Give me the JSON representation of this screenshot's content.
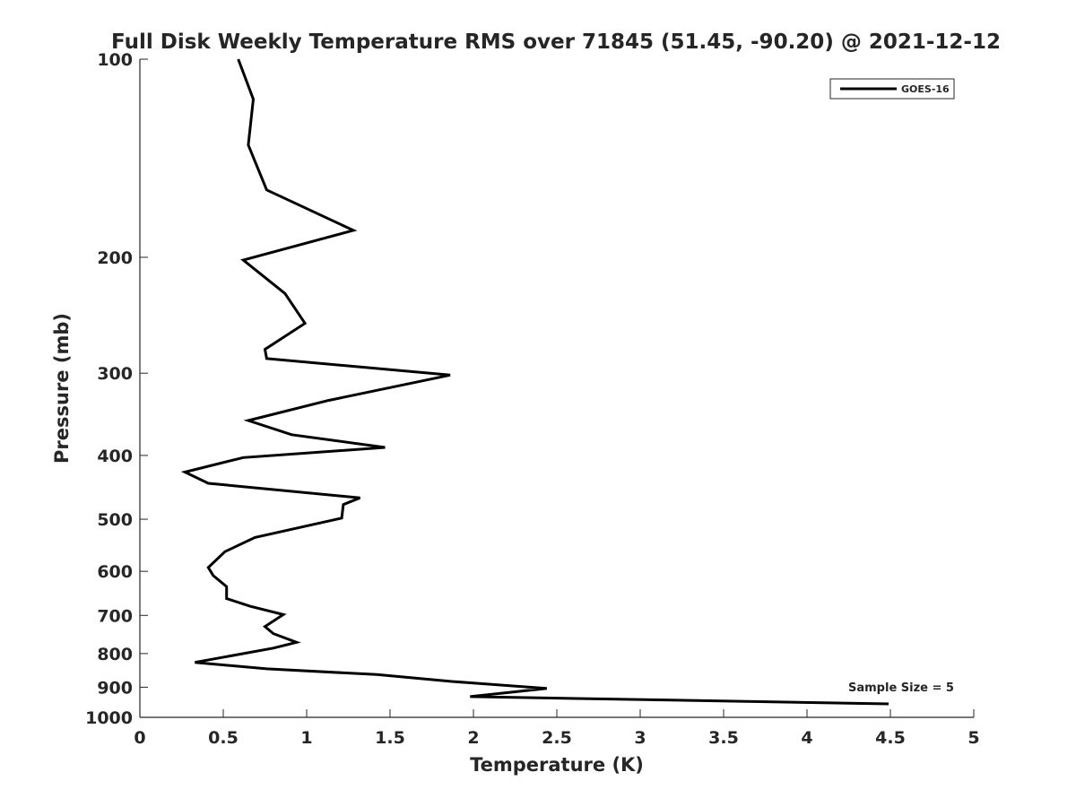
{
  "chart_data": {
    "type": "line",
    "title": "Full Disk Weekly Temperature RMS over 71845 (51.45, -90.20) @ 2021-12-12",
    "xlabel": "Temperature (K)",
    "ylabel": "Pressure (mb)",
    "xlim": [
      0,
      5
    ],
    "ylim": [
      100,
      1000
    ],
    "yscale": "log",
    "yaxis_reversed": true,
    "grid": false,
    "xticks": [
      "0",
      "0.5",
      "1",
      "1.5",
      "2",
      "2.5",
      "3",
      "3.5",
      "4",
      "4.5",
      "5"
    ],
    "yticks": [
      {
        "value": 100,
        "label": "100"
      },
      {
        "value": 200,
        "label": "200"
      },
      {
        "value": 300,
        "label": "300"
      },
      {
        "value": 400,
        "label": "400"
      },
      {
        "value": 500,
        "label": "500"
      },
      {
        "value": 600,
        "label": "600"
      },
      {
        "value": 700,
        "label": "700"
      },
      {
        "value": 800,
        "label": "800"
      },
      {
        "value": 900,
        "label": "900"
      },
      {
        "value": 1000,
        "label": "1000"
      }
    ],
    "legend_position": "top-right",
    "series": [
      {
        "name": "GOES-16",
        "color": "#000000",
        "x": [
          0.59,
          0.68,
          0.65,
          0.76,
          1.28,
          0.62,
          0.87,
          0.99,
          0.75,
          0.76,
          1.86,
          1.13,
          0.65,
          0.91,
          1.47,
          0.62,
          0.27,
          0.41,
          1.32,
          1.22,
          1.21,
          0.69,
          0.51,
          0.41,
          0.44,
          0.52,
          0.52,
          0.66,
          0.86,
          0.75,
          0.8,
          0.94,
          0.8,
          0.33,
          0.76,
          1.42,
          1.87,
          2.44,
          1.98,
          4.49
        ],
        "y": [
          100,
          115,
          135,
          158,
          182,
          202,
          227,
          252,
          276,
          285,
          302,
          330,
          354,
          372,
          389,
          403,
          424,
          441,
          464,
          475,
          498,
          533,
          560,
          592,
          609,
          633,
          660,
          678,
          698,
          728,
          746,
          769,
          785,
          825,
          844,
          861,
          882,
          904,
          930,
          954
        ]
      }
    ],
    "annotation": "Sample Size = 5"
  }
}
